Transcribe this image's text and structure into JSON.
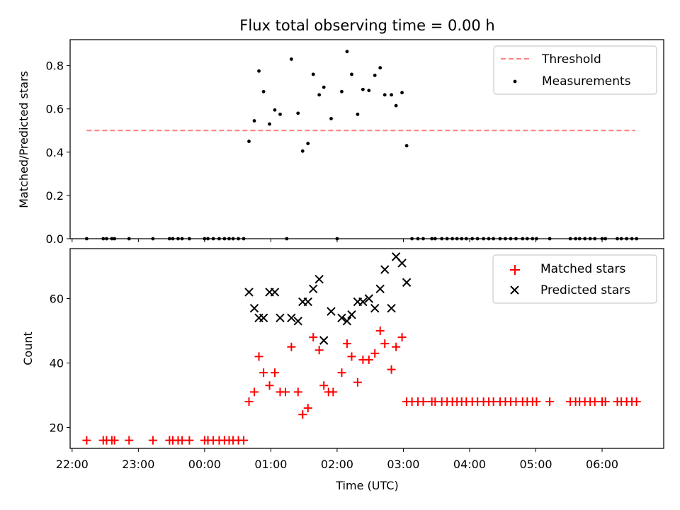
{
  "chart_data": [
    {
      "type": "scatter",
      "title": "Flux total observing time = 0.00 h",
      "ylabel": "Matched/Predicted stars",
      "xlabel": "",
      "x_unit": "hours UTC (24 = 00:00 next day)",
      "xlim": [
        21.97,
        30.93
      ],
      "ylim": [
        0.0,
        0.92
      ],
      "yticks": [
        0.0,
        0.2,
        0.4,
        0.6,
        0.8
      ],
      "ytick_labels": [
        "0.0",
        "0.2",
        "0.4",
        "0.6",
        "0.8"
      ],
      "legend_position": "top-right",
      "series": [
        {
          "name": "Threshold",
          "kind": "line",
          "style": "dashed",
          "color": "#ff7f7f",
          "x": [
            22.22,
            30.5
          ],
          "y": [
            0.5,
            0.5
          ]
        },
        {
          "name": "Measurements",
          "kind": "scatter",
          "marker": "dot",
          "color": "#000000",
          "x": [
            22.22,
            22.47,
            22.52,
            22.6,
            22.64,
            22.86,
            23.22,
            23.47,
            23.52,
            23.6,
            23.66,
            23.77,
            24.0,
            24.05,
            24.13,
            24.22,
            24.3,
            24.37,
            24.43,
            24.51,
            24.59,
            24.67,
            24.75,
            24.82,
            24.89,
            24.98,
            25.06,
            25.14,
            25.24,
            25.31,
            25.41,
            25.48,
            25.56,
            25.64,
            25.73,
            25.8,
            25.91,
            26.0,
            26.07,
            26.15,
            26.22,
            26.31,
            26.39,
            26.48,
            26.57,
            26.65,
            26.72,
            26.82,
            26.89,
            26.98,
            27.05,
            27.13,
            27.22,
            27.3,
            27.43,
            27.48,
            27.58,
            27.66,
            27.74,
            27.81,
            27.88,
            27.95,
            28.04,
            28.12,
            28.21,
            28.29,
            28.36,
            28.46,
            28.54,
            28.62,
            28.7,
            28.8,
            28.87,
            28.95,
            29.01,
            29.21,
            29.52,
            29.6,
            29.66,
            29.74,
            29.82,
            29.89,
            30.0,
            30.05,
            30.23,
            30.29,
            30.37,
            30.45,
            30.52
          ],
          "y": [
            0.0,
            0.0,
            0.0,
            0.0,
            0.0,
            0.0,
            0.0,
            0.0,
            0.0,
            0.0,
            0.0,
            0.0,
            0.0,
            0.0,
            0.0,
            0.0,
            0.0,
            0.0,
            0.0,
            0.0,
            0.0,
            0.45,
            0.545,
            0.775,
            0.68,
            0.53,
            0.595,
            0.575,
            0.0,
            0.83,
            0.58,
            0.405,
            0.44,
            0.76,
            0.665,
            0.7,
            0.555,
            0.0,
            0.68,
            0.865,
            0.76,
            0.575,
            0.69,
            0.685,
            0.755,
            0.79,
            0.665,
            0.665,
            0.615,
            0.675,
            0.43,
            0.0,
            0.0,
            0.0,
            0.0,
            0.0,
            0.0,
            0.0,
            0.0,
            0.0,
            0.0,
            0.0,
            0.0,
            0.0,
            0.0,
            0.0,
            0.0,
            0.0,
            0.0,
            0.0,
            0.0,
            0.0,
            0.0,
            0.0,
            0.0,
            0.0,
            0.0,
            0.0,
            0.0,
            0.0,
            0.0,
            0.0,
            0.0,
            0.0,
            0.0,
            0.0,
            0.0,
            0.0,
            0.0
          ]
        }
      ]
    },
    {
      "type": "scatter",
      "title": "",
      "ylabel": "Count",
      "xlabel": "Time (UTC)",
      "x_unit": "hours UTC (24 = 00:00 next day)",
      "xlim": [
        21.97,
        30.93
      ],
      "ylim": [
        13.5,
        75.5
      ],
      "yticks": [
        20,
        40,
        60
      ],
      "ytick_labels": [
        "20",
        "40",
        "60"
      ],
      "xticks": [
        22,
        23,
        24,
        25,
        26,
        27,
        28,
        29,
        30
      ],
      "xtick_labels": [
        "22:00",
        "23:00",
        "00:00",
        "01:00",
        "02:00",
        "03:00",
        "04:00",
        "05:00",
        "06:00"
      ],
      "legend_position": "top-right",
      "series": [
        {
          "name": "Matched stars",
          "kind": "scatter",
          "marker": "plus",
          "color": "#ff0000",
          "x": [
            22.22,
            22.47,
            22.52,
            22.6,
            22.64,
            22.86,
            23.22,
            23.47,
            23.52,
            23.6,
            23.66,
            23.77,
            24.0,
            24.05,
            24.13,
            24.22,
            24.3,
            24.37,
            24.43,
            24.51,
            24.59,
            24.67,
            24.75,
            24.82,
            24.89,
            24.98,
            25.06,
            25.14,
            25.22,
            25.31,
            25.41,
            25.48,
            25.56,
            25.64,
            25.73,
            25.8,
            25.87,
            25.94,
            26.07,
            26.15,
            26.22,
            26.31,
            26.39,
            26.48,
            26.57,
            26.65,
            26.72,
            26.82,
            26.89,
            26.98,
            27.05,
            27.13,
            27.22,
            27.3,
            27.43,
            27.48,
            27.58,
            27.66,
            27.74,
            27.81,
            27.88,
            27.95,
            28.04,
            28.12,
            28.21,
            28.29,
            28.36,
            28.46,
            28.54,
            28.62,
            28.7,
            28.8,
            28.87,
            28.95,
            29.01,
            29.21,
            29.52,
            29.6,
            29.66,
            29.74,
            29.82,
            29.89,
            30.0,
            30.05,
            30.23,
            30.29,
            30.37,
            30.45,
            30.52
          ],
          "y": [
            16,
            16,
            16,
            16,
            16,
            16,
            16,
            16,
            16,
            16,
            16,
            16,
            16,
            16,
            16,
            16,
            16,
            16,
            16,
            16,
            16,
            28,
            31,
            42,
            37,
            33,
            37,
            31,
            31,
            45,
            31,
            24,
            26,
            48,
            44,
            33,
            31,
            31,
            37,
            46,
            42,
            34,
            41,
            41,
            43,
            50,
            46,
            38,
            45,
            48,
            28,
            28,
            28,
            28,
            28,
            28,
            28,
            28,
            28,
            28,
            28,
            28,
            28,
            28,
            28,
            28,
            28,
            28,
            28,
            28,
            28,
            28,
            28,
            28,
            28,
            28,
            28,
            28,
            28,
            28,
            28,
            28,
            28,
            28,
            28,
            28,
            28,
            28,
            28
          ]
        },
        {
          "name": "Predicted stars",
          "kind": "scatter",
          "marker": "cross",
          "color": "#000000",
          "x": [
            24.67,
            24.75,
            24.82,
            24.89,
            24.98,
            25.06,
            25.14,
            25.31,
            25.41,
            25.48,
            25.56,
            25.64,
            25.73,
            25.8,
            25.91,
            26.07,
            26.15,
            26.22,
            26.31,
            26.39,
            26.48,
            26.57,
            26.65,
            26.72,
            26.82,
            26.89,
            26.98,
            27.05
          ],
          "y": [
            62,
            57,
            54,
            54,
            62,
            62,
            54,
            54,
            53,
            59,
            59,
            63,
            66,
            47,
            56,
            54,
            53,
            55,
            59,
            59,
            60,
            57,
            63,
            69,
            57,
            73,
            71,
            65
          ]
        }
      ]
    }
  ]
}
